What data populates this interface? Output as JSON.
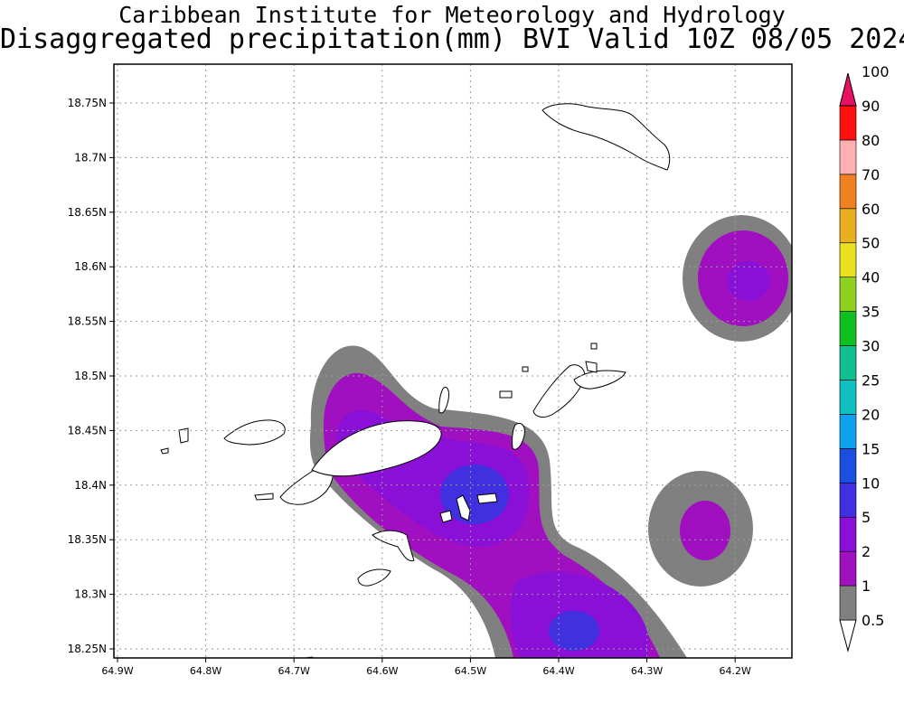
{
  "header": {
    "institution": "Caribbean Institute for Meteorology and Hydrology",
    "product": "Disaggregated precipitation(mm) BVI Valid 10Z 08/05 2024"
  },
  "map": {
    "lon_labels": [
      "64.9W",
      "64.8W",
      "64.7W",
      "64.6W",
      "64.5W",
      "64.4W",
      "64.3W",
      "64.2W"
    ],
    "lat_labels": [
      "18.75N",
      "18.7N",
      "18.65N",
      "18.6N",
      "18.55N",
      "18.5N",
      "18.45N",
      "18.4N",
      "18.35N",
      "18.3N",
      "18.25N"
    ],
    "gridlines": true
  },
  "legend": {
    "levels": [
      "0.5",
      "1",
      "2",
      "5",
      "10",
      "15",
      "20",
      "25",
      "30",
      "35",
      "40",
      "50",
      "60",
      "70",
      "80",
      "90",
      "100"
    ],
    "colors": [
      "#ffffff",
      "#808080",
      "#a010c0",
      "#8a10d8",
      "#4030e0",
      "#1a50e0",
      "#10a0f0",
      "#10c0c0",
      "#10c090",
      "#10c020",
      "#90d020",
      "#e8e020",
      "#e8b020",
      "#f08020",
      "#ffb0b0",
      "#ff1010",
      "#e81060"
    ]
  }
}
